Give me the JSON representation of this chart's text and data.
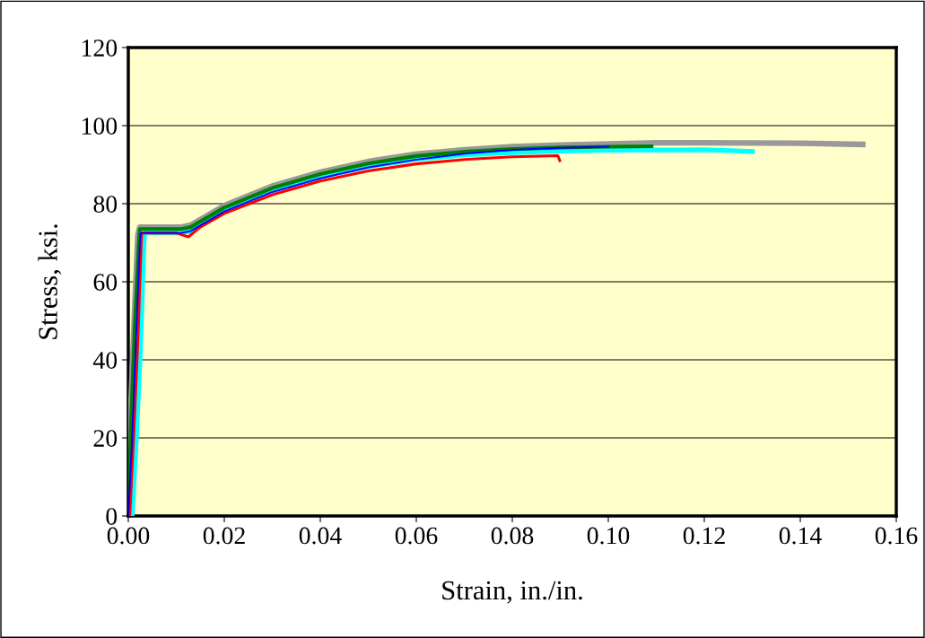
{
  "chart_data": {
    "type": "line",
    "xlabel": "Strain, in./in.",
    "ylabel": "Stress, ksi.",
    "xlim": [
      0,
      0.16
    ],
    "xticks": [
      {
        "value": 0,
        "label": "0.00"
      },
      {
        "value": 0.02,
        "label": "0.02"
      },
      {
        "value": 0.04,
        "label": "0.04"
      },
      {
        "value": 0.06,
        "label": "0.06"
      },
      {
        "value": 0.08,
        "label": "0.08"
      },
      {
        "value": 0.1,
        "label": "0.10"
      },
      {
        "value": 0.12,
        "label": "0.12"
      },
      {
        "value": 0.14,
        "label": "0.14"
      },
      {
        "value": 0.16,
        "label": "0.16"
      }
    ],
    "ylim": [
      0,
      120
    ],
    "yticks": [
      0,
      20,
      40,
      60,
      80,
      100,
      120
    ],
    "grid": "y",
    "marker": "none",
    "line_style": "solid",
    "series": [
      {
        "color": "#0000ff",
        "x": [
          0,
          0.0008,
          0.0016,
          0.0024,
          0.0026,
          0.006,
          0.011,
          0.013,
          0.02,
          0.03,
          0.04,
          0.05,
          0.06,
          0.07,
          0.08,
          0.09,
          0.1
        ],
        "values": [
          0,
          20,
          45,
          70,
          72.5,
          72.5,
          72.5,
          73,
          78,
          83,
          86.5,
          89.3,
          91.3,
          92.8,
          93.8,
          94.3,
          94.6
        ]
      },
      {
        "color": "#ff0000",
        "x": [
          0.0003,
          0.0011,
          0.002,
          0.0027,
          0.0028,
          0.006,
          0.01,
          0.0125,
          0.015,
          0.02,
          0.03,
          0.04,
          0.05,
          0.06,
          0.07,
          0.08,
          0.0895,
          0.0899
        ],
        "values": [
          0,
          20,
          45,
          70,
          72.5,
          72.5,
          72.5,
          71.5,
          74,
          77.5,
          82.3,
          85.8,
          88.4,
          90.2,
          91.3,
          92,
          92.3,
          91
        ]
      },
      {
        "color": "#008000",
        "x": [
          0,
          0.0006,
          0.0014,
          0.0022,
          0.0024,
          0.006,
          0.011,
          0.013,
          0.02,
          0.03,
          0.04,
          0.05,
          0.06,
          0.07,
          0.08,
          0.09,
          0.1,
          0.109
        ],
        "values": [
          0,
          25,
          50,
          70,
          73.5,
          73.5,
          73.5,
          74,
          79,
          84,
          87.6,
          90.3,
          92.2,
          93.3,
          94,
          94.4,
          94.6,
          94.7
        ]
      },
      {
        "color": "#00ffff",
        "x": [
          0.0008,
          0.0016,
          0.0025,
          0.0032,
          0.0034,
          0.006,
          0.011,
          0.013,
          0.02,
          0.03,
          0.04,
          0.05,
          0.06,
          0.07,
          0.08,
          0.09,
          0.1,
          0.12,
          0.13
        ],
        "values": [
          0,
          18,
          42,
          68,
          72.5,
          72.5,
          72.5,
          73,
          78.3,
          83.5,
          86.9,
          89.5,
          91.4,
          92.5,
          93.1,
          93.5,
          93.7,
          93.8,
          93.4
        ]
      },
      {
        "color": "#999999",
        "x": [
          0,
          0.0006,
          0.0014,
          0.002,
          0.0024,
          0.006,
          0.011,
          0.013,
          0.02,
          0.03,
          0.04,
          0.05,
          0.06,
          0.07,
          0.08,
          0.09,
          0.1,
          0.11,
          0.12,
          0.14,
          0.153
        ],
        "values": [
          0,
          30,
          55,
          72,
          74,
          74,
          74,
          74.5,
          79.5,
          84.5,
          88.1,
          90.8,
          92.7,
          93.8,
          94.6,
          95,
          95.3,
          95.6,
          95.6,
          95.5,
          95.2
        ]
      }
    ]
  }
}
